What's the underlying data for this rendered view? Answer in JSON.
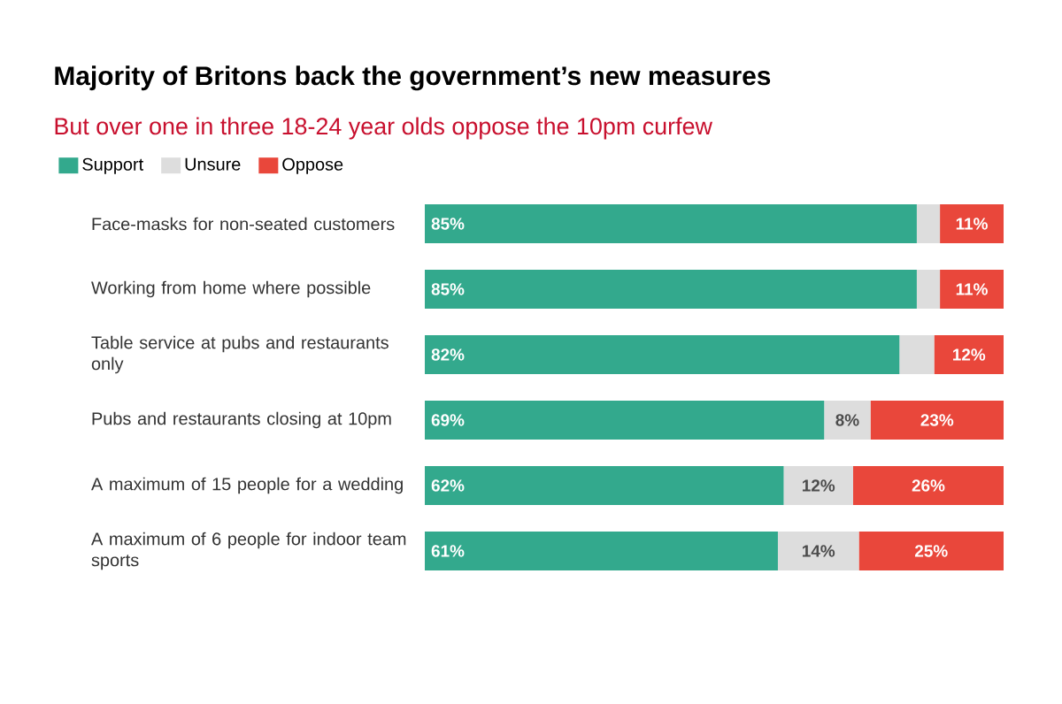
{
  "chart_data": {
    "type": "bar",
    "orientation": "horizontal",
    "stacked": true,
    "title": "Majority of Britons back the government’s new measures",
    "subtitle": "But over one in three 18-24 year olds oppose the 10pm curfew",
    "categories": [
      "Face-masks for non-seated customers",
      "Working from home where possible",
      "Table service at pubs and restaurants only",
      "Pubs and restaurants closing at 10pm",
      "A maximum of 15 people for a wedding",
      "A maximum of 6 people for indoor team sports"
    ],
    "series": [
      {
        "name": "Support",
        "color": "#33a98d",
        "values": [
          85,
          85,
          82,
          69,
          62,
          61
        ],
        "value_labels": [
          "85%",
          "85%",
          "82%",
          "69%",
          "62%",
          "61%"
        ]
      },
      {
        "name": "Unsure",
        "color": "#dddddd",
        "values": [
          4,
          4,
          6,
          8,
          12,
          14
        ],
        "value_labels": [
          null,
          null,
          null,
          "8%",
          "12%",
          "14%"
        ]
      },
      {
        "name": "Oppose",
        "color": "#e9473b",
        "values": [
          11,
          11,
          12,
          23,
          26,
          25
        ],
        "value_labels": [
          "11%",
          "11%",
          "12%",
          "23%",
          "26%",
          "25%"
        ]
      }
    ],
    "xlim": [
      0,
      100
    ],
    "tick_labels": "y",
    "legend": "top left",
    "grid": false
  }
}
